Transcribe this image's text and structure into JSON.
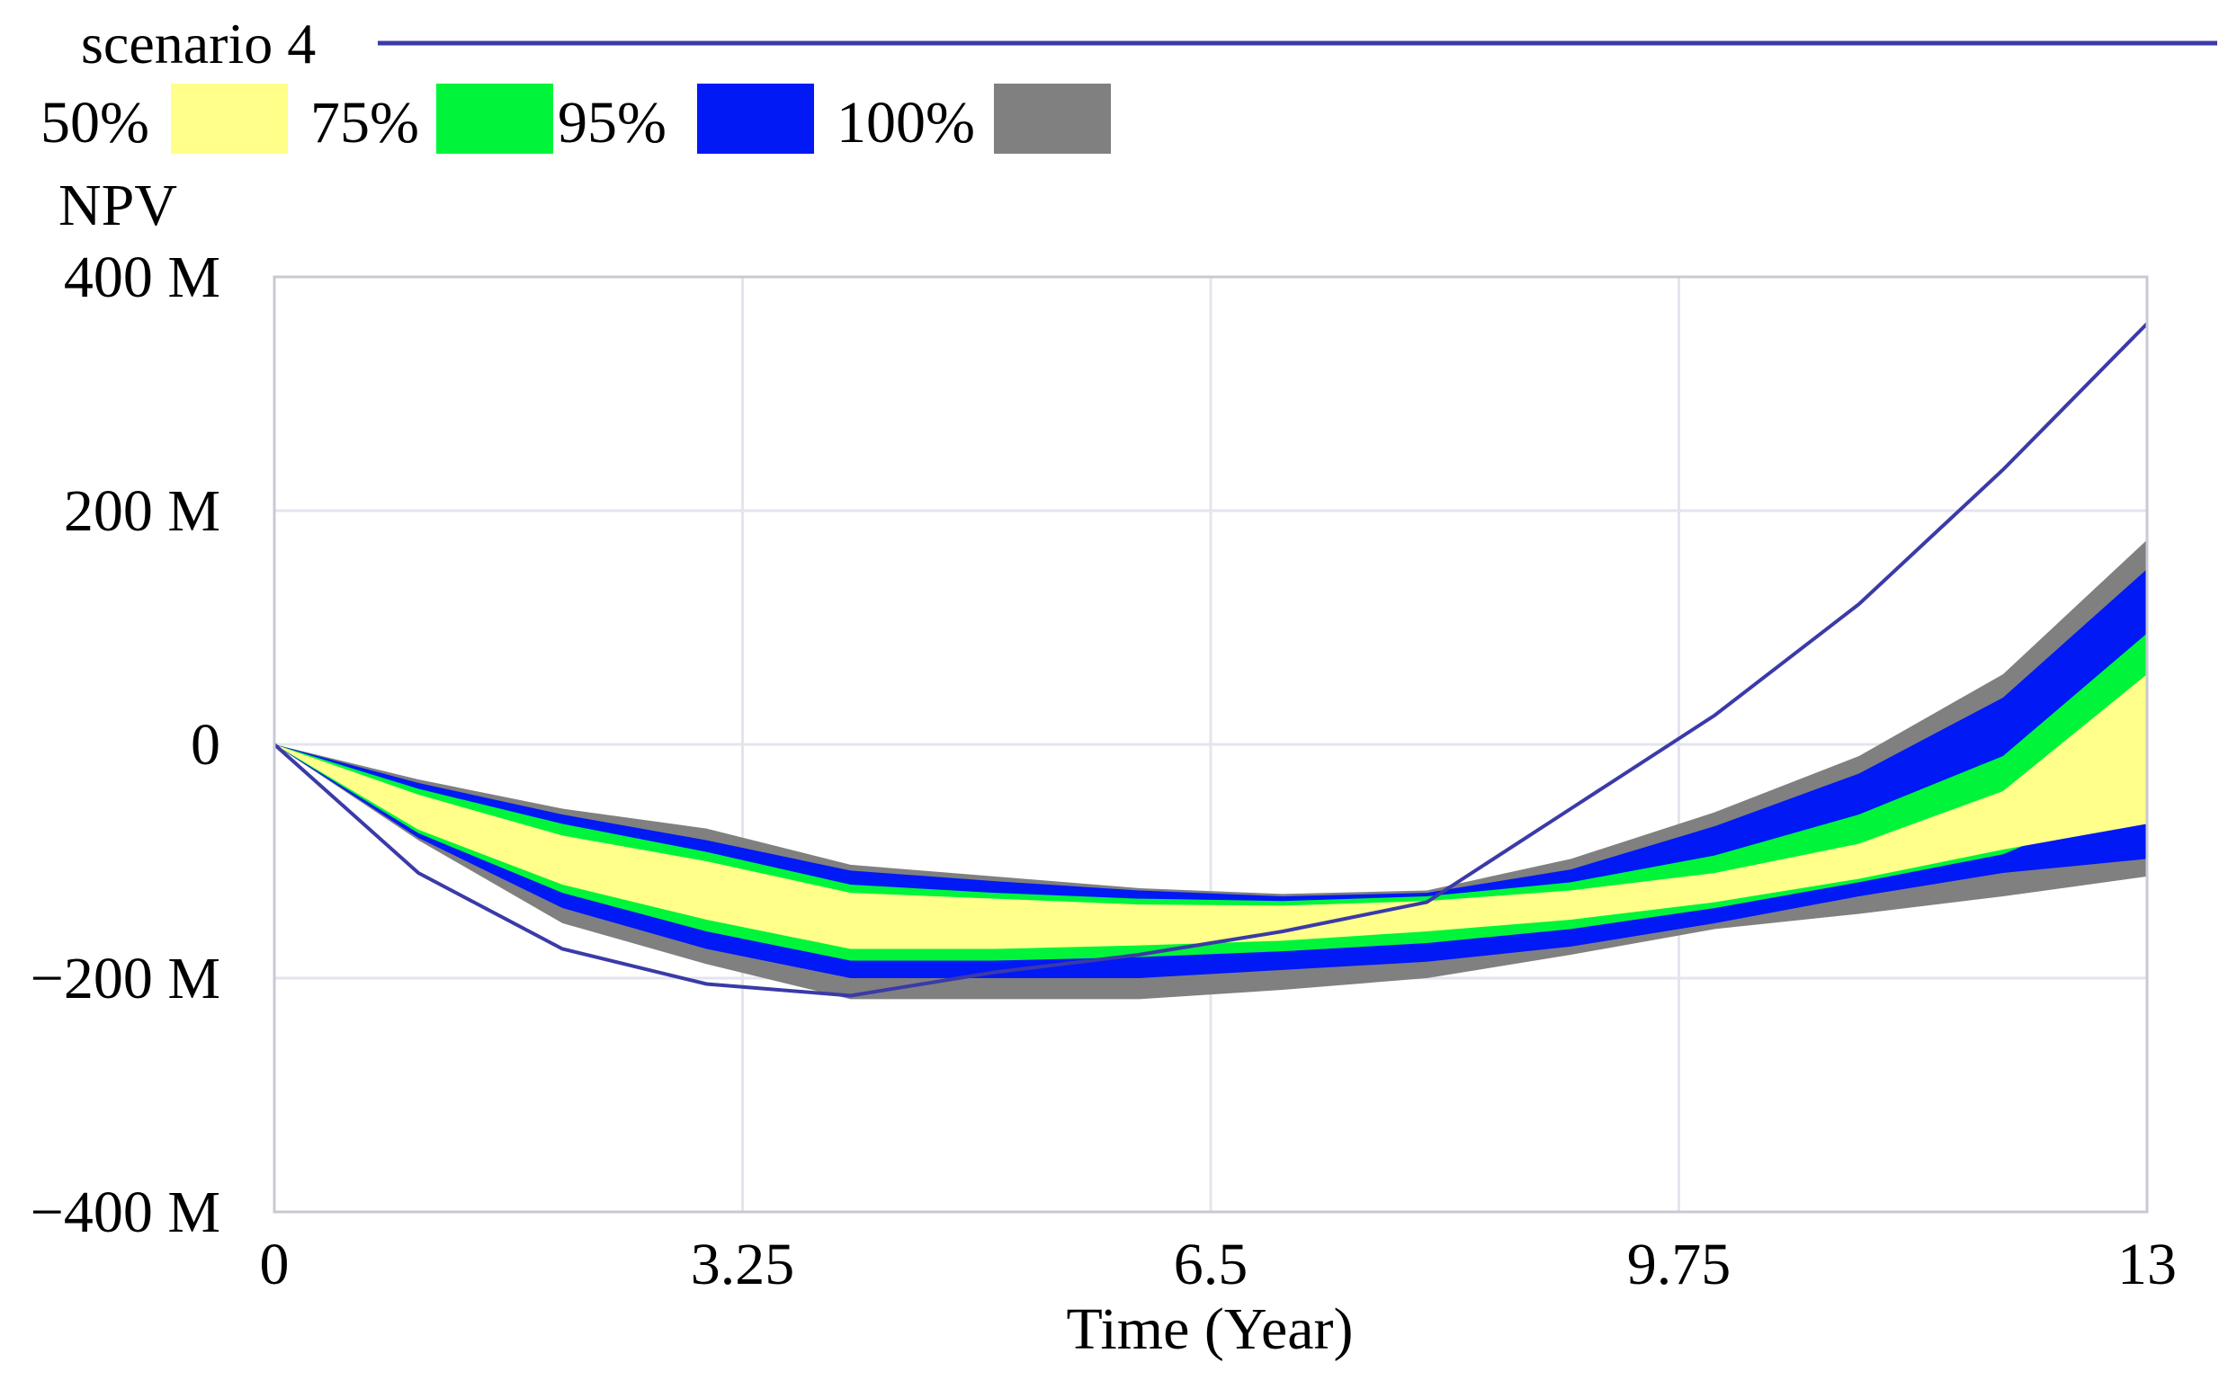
{
  "chart_data": {
    "type": "area",
    "subtype": "sensitivity-confidence-bands",
    "title": "",
    "series_label": "scenario 4",
    "ylabel": "NPV",
    "xlabel": "Time (Year)",
    "xlim": [
      0,
      13
    ],
    "ylim": [
      -400,
      400
    ],
    "y_unit": "M",
    "x_ticks": [
      0,
      3.25,
      6.5,
      9.75,
      13
    ],
    "x_tick_labels": [
      "0",
      "3.25",
      "6.5",
      "9.75",
      "13"
    ],
    "y_ticks": [
      400,
      200,
      0,
      -200,
      -400
    ],
    "y_tick_labels": [
      "400 M",
      "200 M",
      "0",
      "−200 M",
      "−400 M"
    ],
    "grid": true,
    "legend": {
      "placement": "top-left",
      "items": [
        {
          "label": "50%",
          "color": "#ffff8a"
        },
        {
          "label": "75%",
          "color": "#00f53a"
        },
        {
          "label": "95%",
          "color": "#0019f5"
        },
        {
          "label": "100%",
          "color": "#808080"
        }
      ]
    },
    "line_color": "#3a3aa8",
    "x": [
      0,
      1,
      2,
      3,
      4,
      5,
      6,
      7,
      8,
      9,
      10,
      11,
      12,
      13
    ],
    "bands": [
      {
        "name": "100%",
        "color": "#808080",
        "upper": [
          0,
          -30,
          -55,
          -72,
          -103,
          -113,
          -123,
          -128,
          -125,
          -98,
          -58,
          -10,
          60,
          175
        ],
        "lower": [
          0,
          -82,
          -153,
          -188,
          -218,
          -218,
          -218,
          -210,
          -200,
          -180,
          -158,
          -145,
          -130,
          -113
        ]
      },
      {
        "name": "95%",
        "color": "#0019f5",
        "upper": [
          0,
          -33,
          -60,
          -82,
          -108,
          -117,
          -125,
          -130,
          -127,
          -107,
          -70,
          -25,
          40,
          150
        ],
        "lower": [
          0,
          -80,
          -140,
          -175,
          -200,
          -200,
          -200,
          -193,
          -186,
          -173,
          -153,
          -130,
          -110,
          -98
        ]
      },
      {
        "name": "75%",
        "color": "#00f53a",
        "upper": [
          0,
          -38,
          -68,
          -92,
          -120,
          -127,
          -132,
          -134,
          -130,
          -118,
          -95,
          -60,
          -10,
          95
        ]
      },
      {
        "name": "50%",
        "color": "#ffff8a",
        "upper": [
          0,
          -43,
          -78,
          -100,
          -127,
          -132,
          -137,
          -138,
          -134,
          -125,
          -110,
          -85,
          -40,
          60
        ],
        "lower": [
          0,
          -73,
          -120,
          -150,
          -175,
          -175,
          -172,
          -168,
          -160,
          -150,
          -135,
          -115,
          -90,
          -68
        ]
      }
    ],
    "band_75_lower": [
      0,
      -76,
      -127,
      -160,
      -185,
      -185,
      -182,
      -177,
      -170,
      -158,
      -140,
      -118,
      -94,
      -43
    ],
    "line": {
      "name": "scenario 4",
      "values": [
        0,
        -110,
        -175,
        -205,
        -215,
        -195,
        -180,
        -160,
        -135,
        -55,
        25,
        120,
        235,
        360
      ]
    }
  }
}
